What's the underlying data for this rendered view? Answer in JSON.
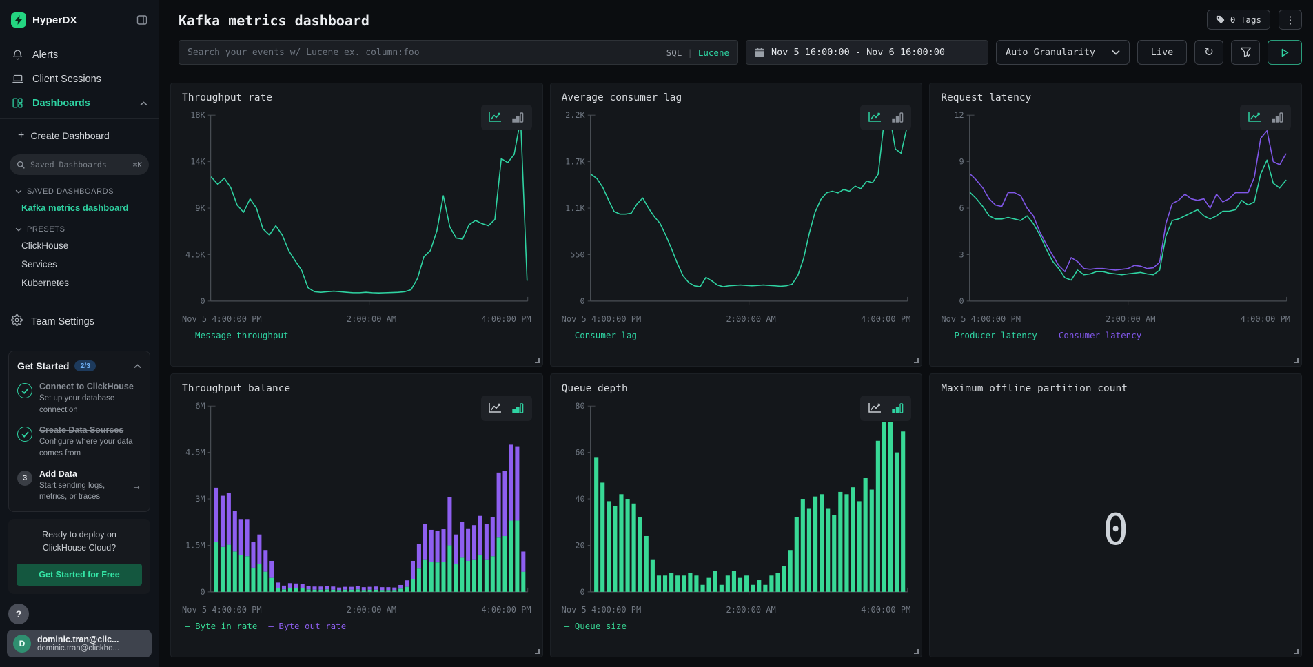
{
  "colors": {
    "green": "#2fd3a2",
    "purple": "#8057e8",
    "bar_green": "#38d996",
    "bar_purple": "#8e5ff0",
    "axis": "#4a4f55",
    "axis_text": "#6e7680",
    "brand_green": "#24d581"
  },
  "sidebar": {
    "logo": "HyperDX",
    "nav": [
      {
        "label": "Alerts"
      },
      {
        "label": "Client Sessions"
      },
      {
        "label": "Dashboards"
      }
    ],
    "create_dashboard": "Create Dashboard",
    "search": {
      "placeholder": "Saved Dashboards",
      "shortcut": "⌘K"
    },
    "saved_section": "SAVED DASHBOARDS",
    "saved_items": [
      "Kafka metrics dashboard"
    ],
    "presets_section": "PRESETS",
    "preset_items": [
      "ClickHouse",
      "Services",
      "Kubernetes"
    ],
    "team_settings": "Team Settings",
    "get_started": {
      "title": "Get Started",
      "badge": "2/3",
      "steps": [
        {
          "title": "Connect to ClickHouse",
          "desc": "Set up your database connection",
          "done": true
        },
        {
          "title": "Create Data Sources",
          "desc": "Configure where your data comes from",
          "done": true
        },
        {
          "title": "Add Data",
          "desc": "Start sending logs, metrics, or traces",
          "done": false,
          "num": "3",
          "arrow": "→"
        }
      ]
    },
    "cloud_promo": {
      "line1": "Ready to deploy on",
      "line2": "ClickHouse Cloud?",
      "button": "Get Started for Free"
    },
    "help": "?",
    "user": {
      "initial": "D",
      "name": "dominic.tran@clic...",
      "email": "dominic.tran@clickho..."
    }
  },
  "header": {
    "title": "Kafka metrics dashboard",
    "tags_button": "0 Tags",
    "kebab": "⋮"
  },
  "toolbar": {
    "search_placeholder": "Search your events w/ Lucene ex. column:foo",
    "sql_label": "SQL",
    "separator": "|",
    "lucene_label": "Lucene",
    "date_range": "Nov 5 16:00:00 - Nov 6 16:00:00",
    "granularity": "Auto Granularity",
    "live": "Live",
    "refresh_icon": "↻"
  },
  "chart_data": [
    {
      "title": "Throughput rate",
      "type": "line",
      "ylim": [
        0,
        18000
      ],
      "yticks": [
        "18K",
        "14K",
        "9K",
        "4.5K",
        "0"
      ],
      "xticks": [
        "Nov 5 4:00:00 PM",
        "2:00:00 AM",
        "4:00:00 PM"
      ],
      "legend_position": "bottom",
      "grid": false,
      "series": [
        {
          "name": "Message throughput",
          "color": "green",
          "values": [
            12000,
            11300,
            11900,
            11000,
            9300,
            8600,
            9900,
            9000,
            7000,
            6400,
            7300,
            6400,
            4900,
            3900,
            3000,
            1300,
            900,
            850,
            900,
            950,
            900,
            850,
            800,
            800,
            850,
            800,
            780,
            800,
            820,
            850,
            900,
            1100,
            2200,
            4300,
            4900,
            6800,
            10200,
            7200,
            6100,
            6000,
            7400,
            7800,
            7500,
            7300,
            7900,
            13800,
            13400,
            14200,
            17600,
            2000
          ]
        }
      ]
    },
    {
      "title": "Average consumer lag",
      "type": "line",
      "ylim": [
        0,
        2200
      ],
      "yticks": [
        "2.2K",
        "1.7K",
        "1.1K",
        "550",
        "0"
      ],
      "xticks": [
        "Nov 5 4:00:00 PM",
        "2:00:00 AM",
        "4:00:00 PM"
      ],
      "legend_position": "bottom",
      "grid": false,
      "series": [
        {
          "name": "Consumer lag",
          "color": "green",
          "values": [
            1500,
            1450,
            1350,
            1200,
            1060,
            1030,
            1030,
            1040,
            1150,
            1220,
            1100,
            1000,
            920,
            780,
            620,
            450,
            300,
            220,
            180,
            170,
            280,
            240,
            190,
            170,
            180,
            185,
            190,
            185,
            180,
            185,
            190,
            185,
            180,
            175,
            180,
            200,
            300,
            500,
            800,
            1050,
            1200,
            1280,
            1300,
            1280,
            1320,
            1300,
            1360,
            1330,
            1420,
            1400,
            1500,
            2100,
            2200,
            1800,
            1750,
            2050
          ]
        }
      ]
    },
    {
      "title": "Request latency",
      "type": "line",
      "ylim": [
        0,
        12
      ],
      "yticks": [
        "12",
        "9",
        "6",
        "3",
        "0"
      ],
      "xticks": [
        "Nov 5 4:00:00 PM",
        "2:00:00 AM",
        "4:00:00 PM"
      ],
      "legend_position": "bottom",
      "grid": false,
      "series": [
        {
          "name": "Producer latency",
          "color": "green",
          "values": [
            7.0,
            6.6,
            6.1,
            5.5,
            5.3,
            5.3,
            5.4,
            5.3,
            5.2,
            5.5,
            5.0,
            4.3,
            3.4,
            2.6,
            2.1,
            1.5,
            1.35,
            2.0,
            1.7,
            1.75,
            1.9,
            1.9,
            1.8,
            1.75,
            1.7,
            1.75,
            1.8,
            1.85,
            1.75,
            1.7,
            2.0,
            4.2,
            5.2,
            5.3,
            5.5,
            5.7,
            5.9,
            5.5,
            5.3,
            5.5,
            5.8,
            5.8,
            5.9,
            6.5,
            6.2,
            6.4,
            8.2,
            9.1,
            7.6,
            7.3,
            7.8
          ]
        },
        {
          "name": "Consumer latency",
          "color": "purple",
          "values": [
            8.2,
            7.8,
            7.3,
            6.6,
            6.2,
            6.1,
            7.0,
            7.0,
            6.8,
            6.0,
            5.5,
            4.5,
            3.7,
            3.0,
            2.3,
            1.9,
            2.8,
            2.55,
            2.1,
            2.05,
            2.1,
            2.1,
            2.05,
            2.0,
            2.05,
            2.1,
            2.3,
            2.25,
            2.1,
            2.15,
            2.5,
            5.0,
            6.3,
            6.5,
            6.9,
            6.6,
            6.5,
            6.6,
            6.0,
            6.9,
            6.4,
            6.6,
            7.0,
            7.0,
            7.0,
            8.0,
            10.5,
            11.0,
            9.0,
            8.8,
            9.5
          ]
        }
      ]
    },
    {
      "title": "Throughput balance",
      "type": "stacked-bar",
      "ylim": [
        0,
        6
      ],
      "yticks": [
        "6M",
        "4.5M",
        "3M",
        "1.5M",
        "0"
      ],
      "xticks": [
        "Nov 5 4:00:00 PM",
        "2:00:00 AM",
        "4:00:00 PM"
      ],
      "legend_position": "bottom",
      "grid": false,
      "series": [
        {
          "name": "Byte in rate",
          "color": "bar_green",
          "values": [
            1.6,
            1.45,
            1.52,
            1.3,
            1.18,
            1.15,
            0.78,
            0.9,
            0.65,
            0.45,
            0.13,
            0.08,
            0.12,
            0.12,
            0.11,
            0.08,
            0.07,
            0.07,
            0.08,
            0.07,
            0.06,
            0.07,
            0.07,
            0.08,
            0.06,
            0.07,
            0.07,
            0.06,
            0.06,
            0.06,
            0.1,
            0.16,
            0.42,
            0.75,
            1.05,
            0.97,
            0.95,
            0.97,
            1.5,
            0.9,
            1.1,
            1.0,
            1.05,
            1.2,
            1.05,
            1.15,
            1.75,
            1.8,
            2.3,
            2.3,
            0.65
          ]
        },
        {
          "name": "Byte out rate",
          "color": "bar_purple",
          "values": [
            1.76,
            1.65,
            1.68,
            1.3,
            1.17,
            1.2,
            0.82,
            0.95,
            0.7,
            0.55,
            0.17,
            0.12,
            0.16,
            0.15,
            0.14,
            0.1,
            0.1,
            0.1,
            0.1,
            0.1,
            0.08,
            0.09,
            0.09,
            0.1,
            0.09,
            0.09,
            0.1,
            0.09,
            0.09,
            0.08,
            0.12,
            0.21,
            0.58,
            0.8,
            1.15,
            1.03,
            1.02,
            1.05,
            1.55,
            0.95,
            1.15,
            1.05,
            1.1,
            1.25,
            1.15,
            1.25,
            2.1,
            2.1,
            2.45,
            2.4,
            0.65
          ]
        }
      ]
    },
    {
      "title": "Queue depth",
      "type": "bar",
      "ylim": [
        0,
        80
      ],
      "yticks": [
        "80",
        "60",
        "40",
        "20",
        "0"
      ],
      "xticks": [
        "Nov 5 4:00:00 PM",
        "2:00:00 AM",
        "4:00:00 PM"
      ],
      "legend_position": "bottom",
      "grid": false,
      "series": [
        {
          "name": "Queue size",
          "color": "bar_green",
          "values": [
            58,
            47,
            39,
            37,
            42,
            40,
            38,
            32,
            24,
            14,
            7,
            7,
            8,
            7,
            7,
            8,
            7,
            3,
            6,
            9,
            3,
            7,
            9,
            6,
            7,
            3,
            5,
            3,
            7,
            8,
            11,
            18,
            32,
            40,
            36,
            41,
            42,
            36,
            33,
            43,
            42,
            45,
            39,
            49,
            44,
            65,
            73,
            73,
            60,
            69
          ]
        }
      ]
    },
    {
      "title": "Maximum offline partition count",
      "type": "number",
      "value": "0"
    }
  ]
}
